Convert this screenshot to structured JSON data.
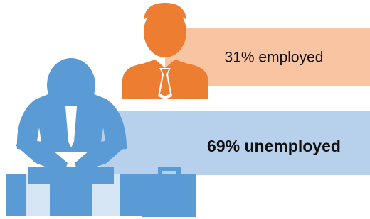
{
  "items": [
    {
      "text": "31% employed"
    },
    {
      "text": "69% unemployed"
    }
  ]
}
